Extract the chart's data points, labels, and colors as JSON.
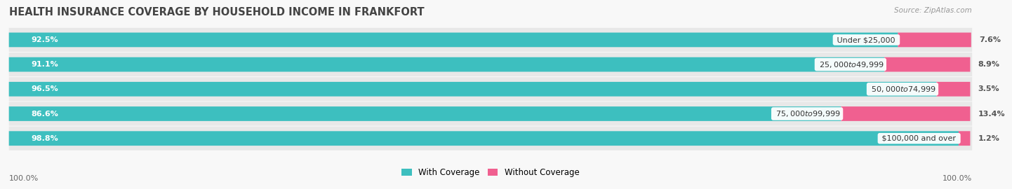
{
  "title": "HEALTH INSURANCE COVERAGE BY HOUSEHOLD INCOME IN FRANKFORT",
  "source": "Source: ZipAtlas.com",
  "categories": [
    "Under $25,000",
    "$25,000 to $49,999",
    "$50,000 to $74,999",
    "$75,000 to $99,999",
    "$100,000 and over"
  ],
  "with_coverage": [
    92.5,
    91.1,
    96.5,
    86.6,
    98.8
  ],
  "without_coverage": [
    7.6,
    8.9,
    3.5,
    13.4,
    1.2
  ],
  "color_with": "#3dbfbf",
  "color_without": "#f06090",
  "color_without_light": "#f8a0b8",
  "row_bg_color": "#ebebeb",
  "bar_bg_color": "#e0e0e0",
  "background": "#f8f8f8",
  "label_left_100": "100.0%",
  "label_right_100": "100.0%",
  "legend_with": "With Coverage",
  "legend_without": "Without Coverage",
  "title_fontsize": 10.5,
  "bar_label_fontsize": 8,
  "category_fontsize": 8,
  "legend_fontsize": 8.5,
  "footer_fontsize": 8
}
